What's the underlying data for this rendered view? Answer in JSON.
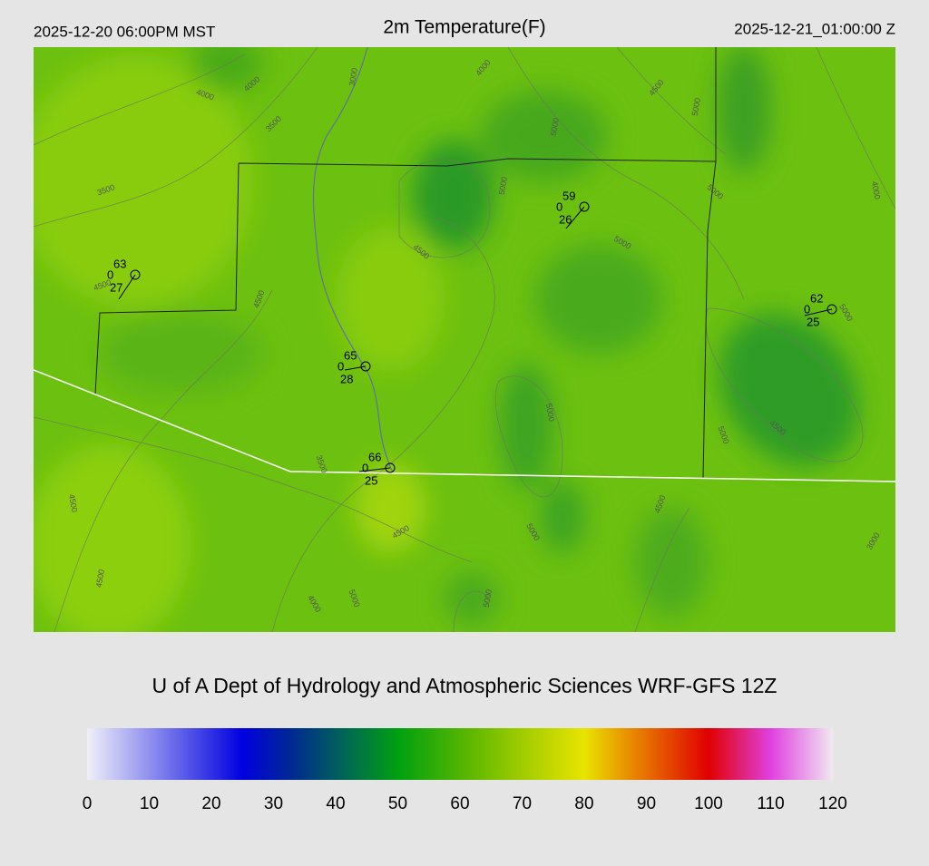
{
  "header": {
    "left": "2025-12-20 06:00PM MST",
    "title": "2m Temperature(F)",
    "right": "2025-12-21_01:00:00 Z"
  },
  "stations": [
    {
      "temp": 63,
      "cover": 0,
      "dewpoint": 27
    },
    {
      "temp": 59,
      "cover": 0,
      "dewpoint": 26
    },
    {
      "temp": 62,
      "cover": 0,
      "dewpoint": 25
    },
    {
      "temp": 65,
      "cover": 0,
      "dewpoint": 28
    },
    {
      "temp": 66,
      "cover": 0,
      "dewpoint": 25
    }
  ],
  "contour_labels": [
    4000,
    4000,
    4000,
    3000,
    3500,
    3500,
    4500,
    5000,
    5000,
    5000,
    5000,
    5000,
    4000,
    4500,
    4500,
    4500,
    5000,
    5000,
    5000,
    4500,
    3500,
    4500,
    4500,
    5000,
    4500,
    3000,
    4500,
    4000,
    5000,
    5000
  ],
  "credit": "U of A Dept of Hydrology and Atmospheric Sciences WRF-GFS 12Z",
  "colorbar": {
    "range": [
      0,
      120
    ],
    "ticks": [
      0,
      10,
      20,
      30,
      40,
      50,
      60,
      70,
      80,
      90,
      100,
      110,
      120
    ],
    "stops": [
      {
        "value": 0,
        "color": "#f0f0f8"
      },
      {
        "value": 25,
        "color": "#0000e0"
      },
      {
        "value": 33,
        "color": "#002a90"
      },
      {
        "value": 42,
        "color": "#006a50"
      },
      {
        "value": 50,
        "color": "#00a010"
      },
      {
        "value": 62,
        "color": "#60b800"
      },
      {
        "value": 70,
        "color": "#a0cc00"
      },
      {
        "value": 80,
        "color": "#e8e400"
      },
      {
        "value": 87,
        "color": "#e89000"
      },
      {
        "value": 100,
        "color": "#e00000"
      },
      {
        "value": 110,
        "color": "#e040e0"
      },
      {
        "value": 120,
        "color": "#f0e8f0"
      }
    ]
  }
}
